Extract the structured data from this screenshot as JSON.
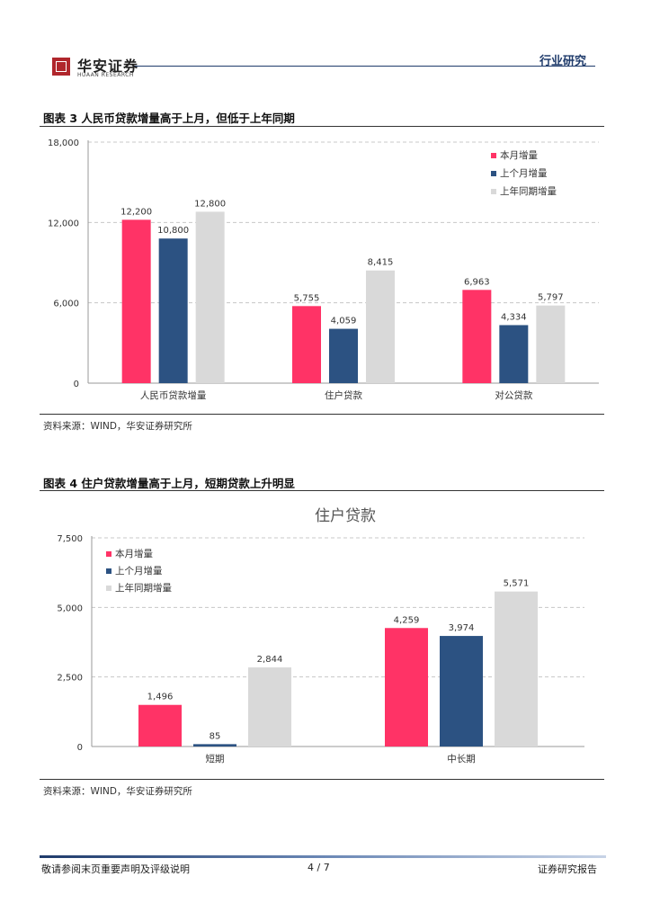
{
  "header": {
    "brand": "华安证券",
    "brand_sub": "HUAAN RESEARCH",
    "section": "行业研究"
  },
  "figure3": {
    "title": "图表 3 人民币贷款增量高于上月，但低于上年同期",
    "source": "资料来源：WIND，华安证券研究所"
  },
  "figure4": {
    "title": "图表 4 住户贷款增量高于上月，短期贷款上升明显",
    "source": "资料来源：WIND，华安证券研究所"
  },
  "footer": {
    "disclaimer": "敬请参阅末页重要声明及评级说明",
    "page": "4 / 7",
    "report_type": "证券研究报告"
  },
  "colors": {
    "current": "#ff3366",
    "previous": "#2c5282",
    "last_year": "#d9d9d9"
  },
  "chart_data": [
    {
      "type": "bar",
      "title": "",
      "categories": [
        "人民币贷款增量",
        "住户贷款",
        "对公贷款"
      ],
      "series": [
        {
          "name": "本月增量",
          "values": [
            12200,
            5755,
            6963
          ]
        },
        {
          "name": "上个月增量",
          "values": [
            10800,
            4059,
            4334
          ]
        },
        {
          "name": "上年同期增量",
          "values": [
            12800,
            8415,
            5797
          ]
        }
      ],
      "value_labels": [
        [
          "12,200",
          "5,755",
          "6,963"
        ],
        [
          "10,800",
          "4,059",
          "4,334"
        ],
        [
          "12,800",
          "8,415",
          "5,797"
        ]
      ],
      "yticks": [
        "0",
        "6,000",
        "12,000",
        "18,000"
      ],
      "ylim": [
        0,
        18000
      ],
      "grid": true,
      "legend": "top-right"
    },
    {
      "type": "bar",
      "title": "住户贷款",
      "categories": [
        "短期",
        "中长期"
      ],
      "series": [
        {
          "name": "本月增量",
          "values": [
            1496,
            4259
          ]
        },
        {
          "name": "上个月增量",
          "values": [
            85,
            3974
          ]
        },
        {
          "name": "上年同期增量",
          "values": [
            2844,
            5571
          ]
        }
      ],
      "value_labels": [
        [
          "1,496",
          "4,259"
        ],
        [
          "85",
          "3,974"
        ],
        [
          "2,844",
          "5,571"
        ]
      ],
      "yticks": [
        "0",
        "2,500",
        "5,000",
        "7,500"
      ],
      "ylim": [
        0,
        7500
      ],
      "grid": true,
      "legend": "top-left"
    }
  ]
}
